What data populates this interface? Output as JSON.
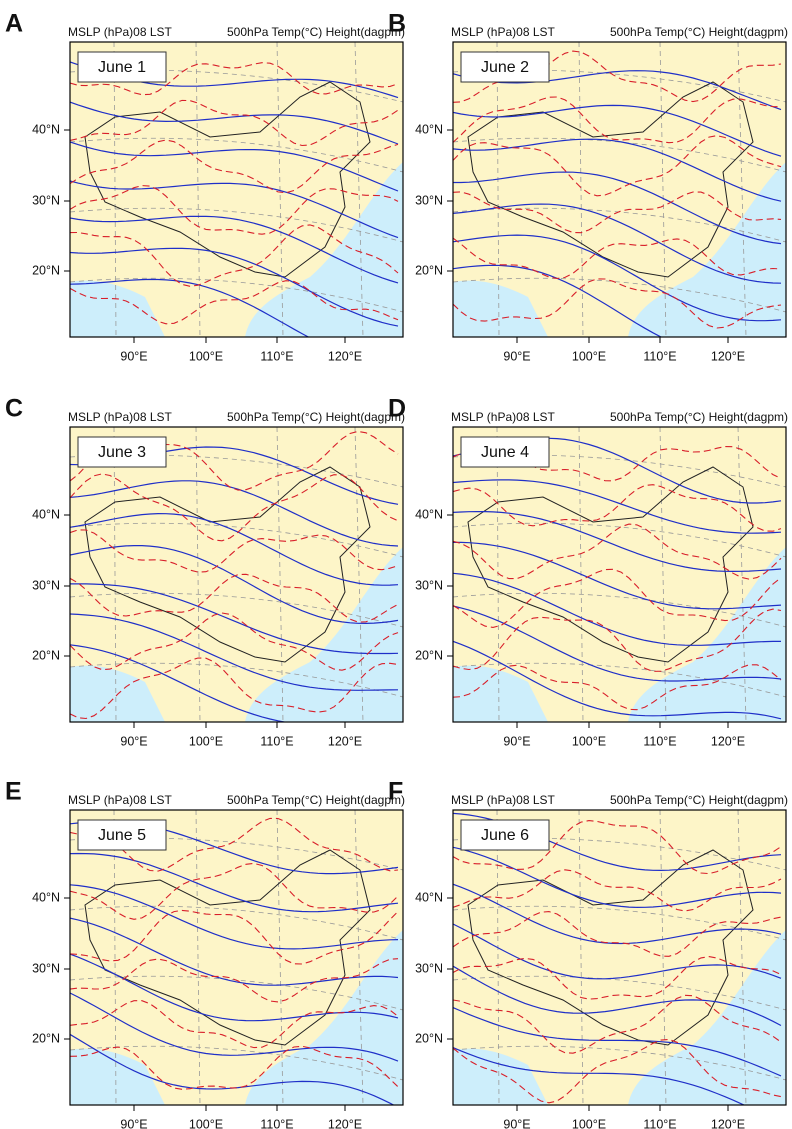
{
  "header_left": "MSLP (hPa)08 LST",
  "header_right": "500hPa Temp(°C) Height(dagpm)",
  "lat_labels": [
    "40°N",
    "30°N",
    "20°N"
  ],
  "lon_labels": [
    "90°E",
    "100°E",
    "110°E",
    "120°E"
  ],
  "panels": [
    {
      "letter": "A",
      "date": "June 1"
    },
    {
      "letter": "B",
      "date": "June 2"
    },
    {
      "letter": "C",
      "date": "June 3"
    },
    {
      "letter": "D",
      "date": "June 4"
    },
    {
      "letter": "E",
      "date": "June 5"
    },
    {
      "letter": "F",
      "date": "June 6"
    }
  ]
}
